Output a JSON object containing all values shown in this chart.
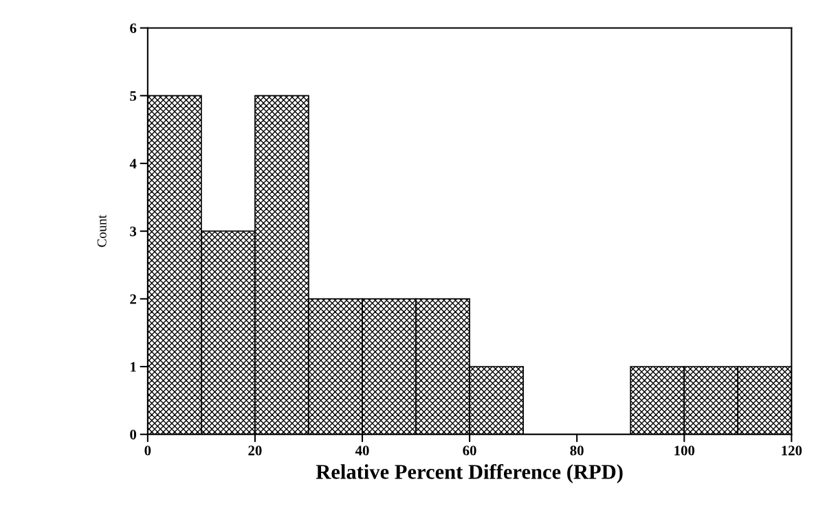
{
  "chart_data": {
    "type": "histogram",
    "xlabel": "Relative Percent Difference (RPD)",
    "ylabel": "Count",
    "bins": [
      0,
      10,
      20,
      30,
      40,
      50,
      60,
      70,
      80,
      90,
      100,
      110,
      120
    ],
    "values": [
      5,
      3,
      5,
      2,
      2,
      2,
      1,
      0,
      0,
      1,
      1,
      1
    ],
    "color": "#000000",
    "xlim": [
      0,
      120
    ],
    "xticks": [
      0,
      20,
      40,
      60,
      80,
      100,
      120
    ],
    "ylim": [
      0,
      6
    ],
    "yticks": [
      0,
      1,
      2,
      3,
      4,
      5,
      6
    ],
    "grid": false,
    "legend": false
  }
}
